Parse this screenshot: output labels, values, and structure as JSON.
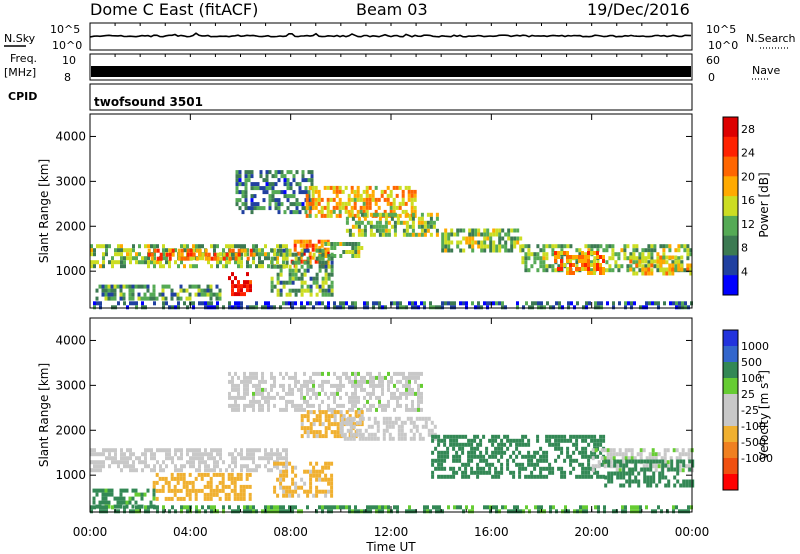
{
  "header": {
    "station": "Dome C East (fitACF)",
    "beam": "Beam 03",
    "date": "19/Dec/2016"
  },
  "strips": {
    "nsky_label": "N.Sky",
    "nsearch_label": "N.Search",
    "freq_label": "Freq.",
    "freq_unit": "[MHz]",
    "nave_label": "Nave",
    "cpid_label": "CPID",
    "cpid_value": "twofsound 3501",
    "noise_ticks": [
      "10^5",
      "10^0"
    ],
    "freq_ticks": [
      "10",
      "8"
    ],
    "nave_ticks": [
      "60",
      "0"
    ]
  },
  "colors": {
    "power": [
      "#0000ff",
      "#2040a0",
      "#3c7a52",
      "#55aa55",
      "#ccdd22",
      "#ffaa00",
      "#ff6600",
      "#ff2200",
      "#dd0000"
    ],
    "velocity": [
      "#ff0000",
      "#f05010",
      "#f08020",
      "#f0b030",
      "#c8c8c8",
      "#c8c8c8",
      "#66cc33",
      "#338855",
      "#3366cc",
      "#2233dd"
    ]
  },
  "chart_data": [
    {
      "type": "heatmap",
      "panel": "power",
      "ylabel": "Slant Range [km]",
      "xlabel": "",
      "yticks": [
        "1000",
        "2000",
        "3000",
        "4000"
      ],
      "xticks": [],
      "ylim": [
        180,
        4500
      ],
      "xlim": [
        0,
        24
      ],
      "colorbar_label": "Power [dB]",
      "colorbar_ticks": [
        "4",
        "8",
        "12",
        "16",
        "20",
        "24",
        "28"
      ],
      "colorbar_range": [
        0,
        30
      ],
      "regions": [
        {
          "t0": 0.0,
          "t1": 7.8,
          "r0": 1150,
          "r1": 1600,
          "value": 12
        },
        {
          "t0": 2.3,
          "t1": 6.6,
          "r0": 1250,
          "r1": 1500,
          "value": 21
        },
        {
          "t0": 5.5,
          "t1": 6.4,
          "r0": 520,
          "r1": 980,
          "value": 27
        },
        {
          "t0": 0.1,
          "t1": 5.2,
          "r0": 350,
          "r1": 700,
          "value": 10
        },
        {
          "t0": 8.0,
          "t1": 9.5,
          "r0": 1150,
          "r1": 1700,
          "value": 22
        },
        {
          "t0": 9.1,
          "t1": 10.8,
          "r0": 1350,
          "r1": 1650,
          "value": 13
        },
        {
          "t0": 5.8,
          "t1": 8.8,
          "r0": 2300,
          "r1": 3250,
          "value": 8
        },
        {
          "t0": 8.6,
          "t1": 13.0,
          "r0": 2200,
          "r1": 2900,
          "value": 18
        },
        {
          "t0": 10.2,
          "t1": 13.8,
          "r0": 1850,
          "r1": 2300,
          "value": 13
        },
        {
          "t0": 14.0,
          "t1": 17.2,
          "r0": 1500,
          "r1": 1950,
          "value": 13
        },
        {
          "t0": 17.2,
          "t1": 24.0,
          "r0": 1050,
          "r1": 1600,
          "value": 12
        },
        {
          "t0": 18.5,
          "t1": 20.5,
          "r0": 1000,
          "r1": 1450,
          "value": 20
        },
        {
          "t0": 21.5,
          "t1": 24.0,
          "r0": 950,
          "r1": 1350,
          "value": 18
        },
        {
          "t0": 7.2,
          "t1": 9.6,
          "r0": 520,
          "r1": 1500,
          "value": 11
        },
        {
          "t0": 0.0,
          "t1": 24.0,
          "r0": 200,
          "r1": 330,
          "value": 6
        }
      ]
    },
    {
      "type": "heatmap",
      "panel": "velocity",
      "ylabel": "Slant Range [km]",
      "xlabel": "Time UT",
      "yticks": [
        "1000",
        "2000",
        "3000",
        "4000"
      ],
      "xticks": [
        "00:00",
        "04:00",
        "08:00",
        "12:00",
        "16:00",
        "20:00",
        "00:00"
      ],
      "ylim": [
        180,
        4500
      ],
      "xlim": [
        0,
        24
      ],
      "colorbar_label": "Velocity [m s",
      "colorbar_sup": "-1",
      "colorbar_ticks": [
        "1000",
        "500",
        "100",
        "25",
        "-25",
        "-100",
        "-500",
        "-1000"
      ],
      "regions": [
        {
          "t0": 0.0,
          "t1": 7.8,
          "r0": 1150,
          "r1": 1600,
          "value": -5
        },
        {
          "t0": 2.5,
          "t1": 6.4,
          "r0": 500,
          "r1": 1050,
          "value": -170
        },
        {
          "t0": 7.3,
          "t1": 9.6,
          "r0": 550,
          "r1": 1300,
          "value": -140
        },
        {
          "t0": 0.1,
          "t1": 2.6,
          "r0": 330,
          "r1": 700,
          "value": 140
        },
        {
          "t0": 5.5,
          "t1": 13.2,
          "r0": 2450,
          "r1": 3300,
          "value": 0
        },
        {
          "t0": 8.4,
          "t1": 10.8,
          "r0": 1900,
          "r1": 2450,
          "value": -120
        },
        {
          "t0": 10.0,
          "t1": 13.8,
          "r0": 1850,
          "r1": 2300,
          "value": -40
        },
        {
          "t0": 13.6,
          "t1": 20.5,
          "r0": 1000,
          "r1": 1900,
          "value": 300
        },
        {
          "t0": 20.0,
          "t1": 24.0,
          "r0": 1150,
          "r1": 1600,
          "value": 5
        },
        {
          "t0": 20.5,
          "t1": 24.0,
          "r0": 800,
          "r1": 1350,
          "value": 350
        },
        {
          "t0": 0.0,
          "t1": 24.0,
          "r0": 200,
          "r1": 330,
          "value": 120
        }
      ]
    }
  ]
}
